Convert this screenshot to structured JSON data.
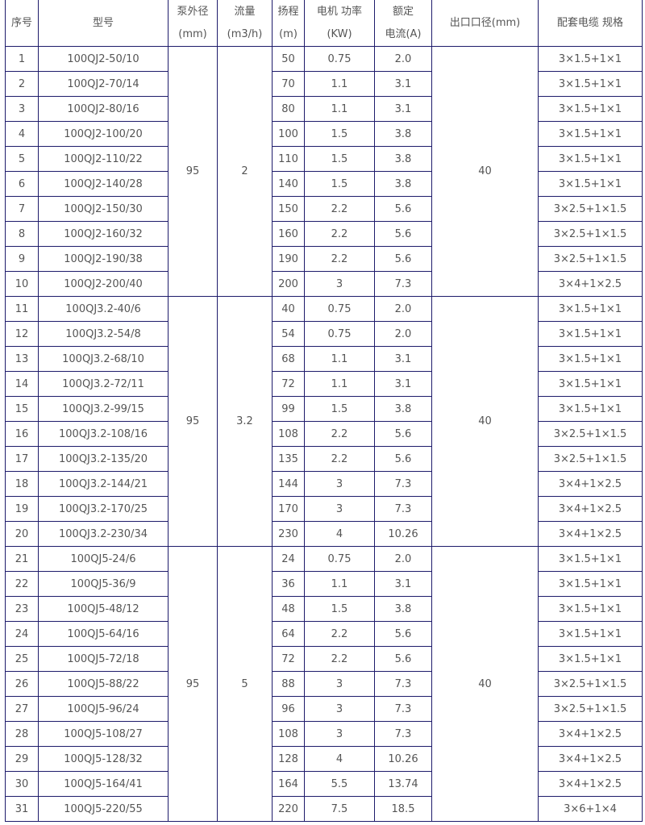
{
  "headers": {
    "no": "序号",
    "model": "型号",
    "od": [
      "泵外径",
      "(mm)"
    ],
    "flow": [
      "流量",
      "(m3/h)"
    ],
    "head": [
      "扬程",
      "(m)"
    ],
    "power": [
      "电机 功率",
      "(KW)"
    ],
    "current": [
      "额定",
      "电流(A)"
    ],
    "outlet": "出口口径(mm)",
    "cable": "配套电缆 规格"
  },
  "groups": [
    {
      "od": "95",
      "flow": "2",
      "outlet": "40",
      "rows": [
        [
          "1",
          "100QJ2-50/10",
          "50",
          "0.75",
          "2.0",
          "3×1.5+1×1"
        ],
        [
          "2",
          "100QJ2-70/14",
          "70",
          "1.1",
          "3.1",
          "3×1.5+1×1"
        ],
        [
          "3",
          "100QJ2-80/16",
          "80",
          "1.1",
          "3.1",
          "3×1.5+1×1"
        ],
        [
          "4",
          "100QJ2-100/20",
          "100",
          "1.5",
          "3.8",
          "3×1.5+1×1"
        ],
        [
          "5",
          "100QJ2-110/22",
          "110",
          "1.5",
          "3.8",
          "3×1.5+1×1"
        ],
        [
          "6",
          "100QJ2-140/28",
          "140",
          "1.5",
          "3.8",
          "3×1.5+1×1"
        ],
        [
          "7",
          "100QJ2-150/30",
          "150",
          "2.2",
          "5.6",
          "3×2.5+1×1.5"
        ],
        [
          "8",
          "100QJ2-160/32",
          "160",
          "2.2",
          "5.6",
          "3×2.5+1×1.5"
        ],
        [
          "9",
          "100QJ2-190/38",
          "190",
          "2.2",
          "5.6",
          "3×2.5+1×1.5"
        ],
        [
          "10",
          "100QJ2-200/40",
          "200",
          "3",
          "7.3",
          "3×4+1×2.5"
        ]
      ]
    },
    {
      "od": "95",
      "flow": "3.2",
      "outlet": "40",
      "rows": [
        [
          "11",
          "100QJ3.2-40/6",
          "40",
          "0.75",
          "2.0",
          "3×1.5+1×1"
        ],
        [
          "12",
          "100QJ3.2-54/8",
          "54",
          "0.75",
          "2.0",
          "3×1.5+1×1"
        ],
        [
          "13",
          "100QJ3.2-68/10",
          "68",
          "1.1",
          "3.1",
          "3×1.5+1×1"
        ],
        [
          "14",
          "100QJ3.2-72/11",
          "72",
          "1.1",
          "3.1",
          "3×1.5+1×1"
        ],
        [
          "15",
          "100QJ3.2-99/15",
          "99",
          "1.5",
          "3.8",
          "3×1.5+1×1"
        ],
        [
          "16",
          "100QJ3.2-108/16",
          "108",
          "2.2",
          "5.6",
          "3×2.5+1×1.5"
        ],
        [
          "17",
          "100QJ3.2-135/20",
          "135",
          "2.2",
          "5.6",
          "3×2.5+1×1.5"
        ],
        [
          "18",
          "100QJ3.2-144/21",
          "144",
          "3",
          "7.3",
          "3×4+1×2.5"
        ],
        [
          "19",
          "100QJ3.2-170/25",
          "170",
          "3",
          "7.3",
          "3×4+1×2.5"
        ],
        [
          "20",
          "100QJ3.2-230/34",
          "230",
          "4",
          "10.26",
          "3×4+1×2.5"
        ]
      ]
    },
    {
      "od": "95",
      "flow": "5",
      "outlet": "40",
      "rows": [
        [
          "21",
          "100QJ5-24/6",
          "24",
          "0.75",
          "2.0",
          "3×1.5+1×1"
        ],
        [
          "22",
          "100QJ5-36/9",
          "36",
          "1.1",
          "3.1",
          "3×1.5+1×1"
        ],
        [
          "23",
          "100QJ5-48/12",
          "48",
          "1.5",
          "3.8",
          "3×1.5+1×1"
        ],
        [
          "24",
          "100QJ5-64/16",
          "64",
          "2.2",
          "5.6",
          "3×1.5+1×1"
        ],
        [
          "25",
          "100QJ5-72/18",
          "72",
          "2.2",
          "5.6",
          "3×1.5+1×1"
        ],
        [
          "26",
          "100QJ5-88/22",
          "88",
          "3",
          "7.3",
          "3×2.5+1×1.5"
        ],
        [
          "27",
          "100QJ5-96/24",
          "96",
          "3",
          "7.3",
          "3×2.5+1×1.5"
        ],
        [
          "28",
          "100QJ5-108/27",
          "108",
          "3",
          "7.3",
          "3×4+1×2.5"
        ],
        [
          "29",
          "100QJ5-128/32",
          "128",
          "4",
          "10.26",
          "3×4+1×2.5"
        ],
        [
          "30",
          "100QJ5-164/41",
          "164",
          "5.5",
          "13.74",
          "3×4+1×2.5"
        ],
        [
          "31",
          "100QJ5-220/55",
          "220",
          "7.5",
          "18.5",
          "3×6+1×4"
        ]
      ]
    }
  ]
}
